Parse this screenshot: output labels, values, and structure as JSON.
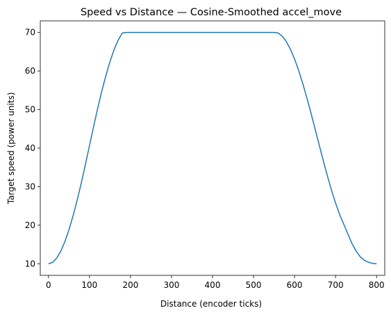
{
  "chart_data": {
    "type": "line",
    "title": "Speed vs Distance — Cosine-Smoothed accel_move",
    "xlabel": "Distance (encoder ticks)",
    "ylabel": "Target speed (power units)",
    "xlim": [
      -20,
      820
    ],
    "ylim": [
      7,
      73
    ],
    "x_ticks": [
      0,
      100,
      200,
      300,
      400,
      500,
      600,
      700,
      800
    ],
    "y_ticks": [
      10,
      20,
      30,
      40,
      50,
      60,
      70
    ],
    "grid": false,
    "legend": "none",
    "series": [
      {
        "color": "#1f77b4",
        "x": [
          0,
          10,
          20,
          30,
          40,
          50,
          60,
          70,
          80,
          90,
          100,
          110,
          120,
          130,
          140,
          150,
          160,
          170,
          180,
          190,
          200,
          250,
          300,
          350,
          400,
          450,
          500,
          550,
          560,
          570,
          580,
          590,
          600,
          610,
          620,
          630,
          640,
          650,
          660,
          670,
          680,
          690,
          700,
          710,
          720,
          730,
          740,
          750,
          760,
          770,
          780,
          790,
          800
        ],
        "values": [
          10,
          10.37,
          11.46,
          13.28,
          15.75,
          18.84,
          22.46,
          26.53,
          30.98,
          35.73,
          40.65,
          45.57,
          50.32,
          54.77,
          58.84,
          62.46,
          65.55,
          68.02,
          69.84,
          70,
          70,
          70,
          70,
          70,
          70,
          70,
          70,
          70,
          69.84,
          69.04,
          67.62,
          65.63,
          63.12,
          60.14,
          56.77,
          53.07,
          49.13,
          45.03,
          40.87,
          36.78,
          32.84,
          29.14,
          25.77,
          22.79,
          20.28,
          17.75,
          15.28,
          13.31,
          11.86,
          10.93,
          10.41,
          10.11,
          10
        ]
      }
    ]
  }
}
